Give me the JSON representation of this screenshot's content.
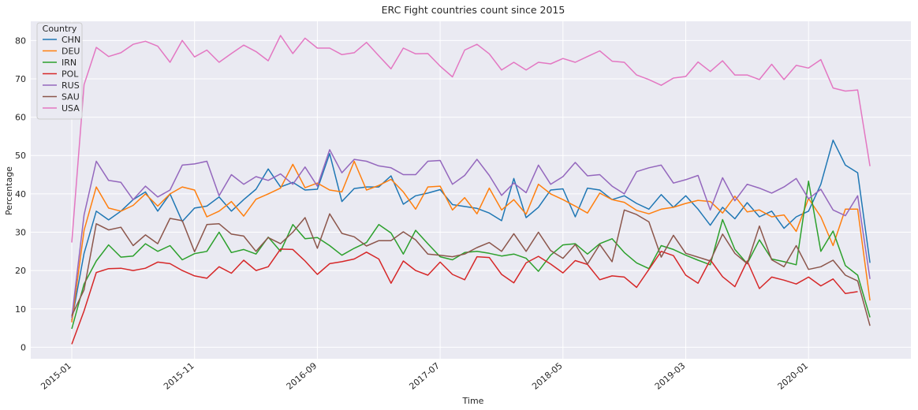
{
  "chart_data": {
    "type": "line",
    "title": "ERC Fight countries count since 2015",
    "xlabel": "Time",
    "ylabel": "Percentage",
    "ylim": [
      -3,
      85
    ],
    "yticks": [
      0,
      10,
      20,
      30,
      40,
      50,
      60,
      70,
      80
    ],
    "x_start": "2015-01",
    "xticks": [
      "2015-01",
      "2015-11",
      "2016-09",
      "2017-07",
      "2018-05",
      "2019-03",
      "2020-01"
    ],
    "grid": true,
    "legend": {
      "title": "Country",
      "position": "top-left"
    },
    "series": [
      {
        "name": "CHN",
        "color": "#1f77b4",
        "values": [
          7.0,
          24.5,
          35.5,
          33.2,
          35.5,
          38.5,
          40.5,
          35.5,
          40.0,
          32.8,
          36.3,
          36.8,
          39.2,
          35.5,
          38.5,
          41.2,
          46.5,
          41.8,
          43.0,
          41.0,
          41.2,
          50.5,
          38.0,
          41.4,
          41.8,
          41.8,
          44.7,
          37.3,
          39.5,
          40.2,
          41.1,
          37.2,
          36.7,
          36.2,
          35.0,
          33.0,
          44.0,
          33.8,
          36.5,
          41.0,
          41.3,
          34.0,
          41.5,
          41.0,
          38.5,
          39.5,
          37.5,
          36.0,
          39.8,
          36.5,
          39.5,
          36.0,
          31.8,
          36.5,
          33.5,
          37.7,
          34.0,
          35.5,
          31.0,
          34.0,
          35.5,
          42.5,
          54.0,
          47.5,
          45.5,
          22.0
        ]
      },
      {
        "name": "DEU",
        "color": "#ff7f0e",
        "values": [
          6.5,
          30.5,
          41.8,
          36.3,
          35.5,
          37.0,
          40.0,
          36.8,
          40.0,
          41.8,
          41.0,
          34.0,
          35.5,
          38.0,
          34.2,
          38.6,
          40.0,
          41.5,
          47.7,
          41.6,
          42.8,
          41.0,
          40.5,
          48.5,
          41.0,
          42.2,
          43.8,
          40.5,
          36.0,
          41.8,
          42.0,
          35.8,
          39.0,
          34.8,
          41.5,
          35.8,
          38.5,
          34.7,
          42.5,
          40.0,
          38.5,
          36.8,
          35.0,
          40.2,
          38.5,
          37.8,
          35.7,
          34.8,
          36.0,
          36.5,
          37.5,
          38.3,
          38.0,
          35.0,
          39.4,
          35.3,
          35.8,
          34.0,
          34.5,
          30.2,
          38.8,
          34.0,
          26.5,
          36.0,
          36.0,
          12.2
        ]
      },
      {
        "name": "IRN",
        "color": "#2ca02c",
        "values": [
          4.8,
          16.5,
          22.5,
          26.7,
          23.5,
          23.8,
          27.0,
          25.0,
          26.5,
          22.8,
          24.4,
          25.0,
          30.0,
          24.7,
          25.5,
          24.3,
          28.7,
          25.0,
          32.0,
          28.3,
          28.6,
          26.5,
          24.0,
          25.8,
          27.3,
          32.0,
          29.8,
          24.3,
          30.5,
          27.0,
          23.6,
          22.8,
          24.7,
          25.0,
          24.5,
          23.8,
          24.3,
          23.2,
          19.8,
          24.0,
          26.7,
          27.0,
          24.3,
          27.0,
          28.3,
          24.7,
          22.0,
          20.5,
          26.5,
          25.5,
          24.0,
          22.7,
          21.5,
          33.3,
          25.5,
          21.8,
          28.0,
          23.0,
          22.3,
          21.5,
          43.3,
          25.0,
          30.3,
          21.3,
          18.8,
          7.8
        ]
      },
      {
        "name": "POL",
        "color": "#d62728",
        "values": [
          0.8,
          9.5,
          19.5,
          20.5,
          20.6,
          20.0,
          20.6,
          22.2,
          21.8,
          20.0,
          18.6,
          18.0,
          21.0,
          19.3,
          22.7,
          20.0,
          21.0,
          25.6,
          25.5,
          22.5,
          19.0,
          21.8,
          22.3,
          23.0,
          24.8,
          23.0,
          16.7,
          22.5,
          20.0,
          18.8,
          22.2,
          19.0,
          17.6,
          23.6,
          23.4,
          19.0,
          16.8,
          22.0,
          23.7,
          21.7,
          19.4,
          22.6,
          21.6,
          17.6,
          18.6,
          18.3,
          15.6,
          20.3,
          25.0,
          23.9,
          18.8,
          16.7,
          22.8,
          18.4,
          15.8,
          22.5,
          15.3,
          18.3,
          17.5,
          16.5,
          18.3,
          16.0,
          17.8,
          14.0,
          14.5
        ]
      },
      {
        "name": "RUS",
        "color": "#9467bd",
        "values": [
          7.7,
          34.5,
          48.5,
          43.5,
          43.0,
          38.5,
          42.0,
          39.2,
          41.0,
          47.5,
          47.8,
          48.5,
          39.5,
          45.0,
          42.5,
          44.5,
          43.5,
          45.2,
          42.5,
          47.0,
          42.0,
          51.5,
          45.5,
          49.0,
          48.5,
          47.3,
          46.8,
          45.0,
          45.0,
          48.5,
          48.7,
          42.5,
          44.8,
          49.0,
          44.8,
          39.6,
          42.8,
          40.3,
          47.5,
          42.5,
          44.5,
          48.2,
          44.7,
          45.0,
          42.0,
          40.0,
          45.8,
          46.8,
          47.5,
          42.8,
          43.7,
          44.8,
          35.8,
          44.2,
          38.2,
          42.5,
          41.5,
          40.2,
          41.8,
          44.0,
          38.7,
          41.2,
          35.8,
          34.3,
          39.5,
          17.8
        ]
      },
      {
        "name": "SAU",
        "color": "#8c564b",
        "values": [
          8.2,
          15.0,
          32.2,
          30.6,
          31.3,
          26.5,
          29.3,
          27.0,
          33.6,
          33.0,
          24.9,
          32.0,
          32.2,
          29.5,
          29.0,
          25.0,
          28.6,
          27.0,
          30.0,
          33.8,
          25.8,
          34.8,
          29.7,
          28.8,
          26.4,
          27.8,
          27.8,
          30.1,
          28.0,
          24.3,
          24.0,
          23.6,
          24.3,
          26.0,
          27.3,
          25.0,
          29.6,
          25.0,
          30.0,
          25.2,
          23.2,
          26.8,
          21.7,
          26.8,
          22.3,
          35.8,
          34.6,
          32.7,
          23.5,
          29.2,
          24.5,
          23.5,
          22.5,
          29.5,
          24.5,
          21.8,
          31.6,
          22.8,
          21.0,
          26.5,
          20.3,
          21.0,
          22.7,
          18.8,
          17.3,
          5.6
        ]
      },
      {
        "name": "USA",
        "color": "#e377c2",
        "values": [
          27.3,
          68.5,
          78.2,
          75.8,
          76.8,
          79.0,
          79.8,
          78.5,
          74.3,
          80.0,
          75.7,
          77.5,
          74.3,
          76.6,
          78.8,
          77.1,
          74.7,
          81.3,
          76.6,
          80.6,
          78.0,
          78.0,
          76.3,
          76.8,
          79.5,
          76.0,
          72.6,
          78.0,
          76.5,
          76.6,
          73.3,
          70.5,
          77.5,
          79.0,
          76.5,
          72.3,
          74.3,
          72.3,
          74.3,
          73.9,
          75.3,
          74.3,
          75.8,
          77.3,
          74.6,
          74.3,
          71.0,
          69.8,
          68.3,
          70.2,
          70.6,
          74.4,
          71.9,
          74.7,
          71.0,
          71.0,
          69.8,
          73.8,
          69.8,
          73.5,
          72.8,
          75.0,
          67.6,
          66.8,
          67.1,
          47.2
        ]
      }
    ]
  }
}
